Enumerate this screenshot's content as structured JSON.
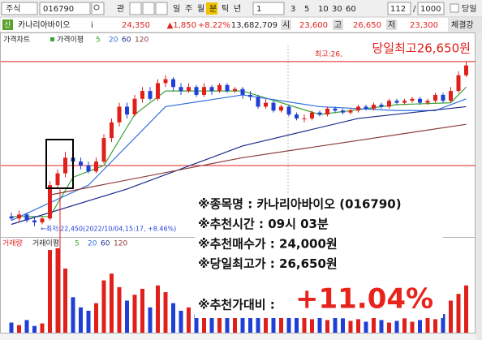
{
  "toolbar": {
    "market": "주식",
    "code": "016790",
    "search_label": "관",
    "periods": [
      "일",
      "주",
      "월",
      "분",
      "틱",
      "년"
    ],
    "active_period": "분",
    "interval": "1",
    "intervals": [
      "3",
      "5",
      "10",
      "30",
      "60"
    ],
    "count": "112",
    "separator": "/",
    "max_count": "1000",
    "today_label": "당일"
  },
  "info": {
    "badge": "신",
    "name": "카나리아바이오",
    "info_icon": "i",
    "price": "24,350",
    "change": "▲1,850",
    "change_pct": "+8.22%",
    "volume": "13,682,709",
    "open_label": "시",
    "open": "23,600",
    "high_label": "고",
    "high": "26,650",
    "low_label": "저",
    "low": "23,300",
    "strength_label": "체결강"
  },
  "chart_data": {
    "type": "candlestick",
    "tabs": [
      "가격차트",
      "가격이평"
    ],
    "ylim": [
      22200,
      27060
    ],
    "hlines": [
      26650,
      24000
    ],
    "up_color": "#e0201b",
    "down_color": "#1f3fd6",
    "high_marker": "최고:26,",
    "high_note": "당일최고26,650원",
    "low_note": "←최저:22,450(2022/10/04,15:17, +8.46%)",
    "open": [
      22700,
      22650,
      22750,
      22600,
      22550,
      22650,
      23500,
      23800,
      24200,
      24100,
      24000,
      23850,
      24100,
      24700,
      25100,
      25500,
      25300,
      25700,
      25900,
      25700,
      26100,
      26200,
      26000,
      25900,
      26000,
      25800,
      26000,
      25900,
      26050,
      25900,
      25950,
      25800,
      25750,
      25500,
      25600,
      25400,
      25500,
      25300,
      25200,
      25200,
      25350,
      25300,
      25450,
      25400,
      25350,
      25400,
      25500,
      25450,
      25550,
      25500,
      25650,
      25600,
      25650,
      25700,
      25600,
      25650,
      25800,
      25650,
      25900,
      26300
    ],
    "close": [
      22650,
      22750,
      22600,
      22550,
      22650,
      23500,
      23800,
      24200,
      24100,
      24000,
      23850,
      24100,
      24700,
      25100,
      25500,
      25300,
      25700,
      25900,
      25700,
      26100,
      26200,
      26000,
      25900,
      26000,
      25800,
      26000,
      25900,
      26050,
      25900,
      25950,
      25800,
      25750,
      25500,
      25600,
      25400,
      25500,
      25300,
      25200,
      25200,
      25350,
      25300,
      25450,
      25400,
      25350,
      25400,
      25500,
      25450,
      25550,
      25500,
      25650,
      25600,
      25650,
      25700,
      25600,
      25650,
      25800,
      25650,
      25900,
      26300,
      26550
    ],
    "high": [
      22800,
      22850,
      22800,
      22700,
      22700,
      23600,
      23900,
      24350,
      24300,
      24200,
      24100,
      24200,
      24800,
      25200,
      25600,
      25600,
      25800,
      26000,
      26000,
      26200,
      26300,
      26250,
      26100,
      26100,
      26050,
      26100,
      26050,
      26100,
      26100,
      26000,
      26000,
      25900,
      25800,
      25700,
      25650,
      25550,
      25550,
      25350,
      25300,
      25400,
      25400,
      25500,
      25500,
      25450,
      25450,
      25550,
      25550,
      25600,
      25600,
      25700,
      25700,
      25700,
      25750,
      25750,
      25700,
      25850,
      25850,
      26000,
      26400,
      26650
    ],
    "low": [
      22600,
      22550,
      22550,
      22450,
      22500,
      22600,
      23400,
      23700,
      24000,
      23900,
      23800,
      23800,
      24050,
      24600,
      25000,
      25200,
      25250,
      25600,
      25650,
      25650,
      26000,
      25900,
      25800,
      25850,
      25750,
      25750,
      25800,
      25850,
      25850,
      25850,
      25700,
      25650,
      25450,
      25450,
      25350,
      25350,
      25250,
      25150,
      25100,
      25150,
      25250,
      25250,
      25350,
      25300,
      25300,
      25350,
      25400,
      25400,
      25450,
      25450,
      25550,
      25550,
      25600,
      25550,
      25550,
      25600,
      25600,
      25600,
      25850,
      26250
    ],
    "moving_averages": [
      {
        "name": "5",
        "color": "#3aa335",
        "x": [
          0,
          5,
          8,
          12,
          16,
          20,
          30,
          40,
          50,
          57,
          59
        ],
        "values": [
          22700,
          22700,
          23700,
          24000,
          25300,
          25900,
          25900,
          25300,
          25550,
          25600,
          26000
        ]
      },
      {
        "name": "20",
        "color": "#2f6fe0",
        "x": [
          0,
          10,
          20,
          30,
          40,
          50,
          55,
          59
        ],
        "values": [
          22600,
          23500,
          25500,
          25800,
          25500,
          25400,
          25400,
          25700
        ]
      },
      {
        "name": "60",
        "color": "#1a2a8a",
        "x": [
          0,
          15,
          30,
          45,
          59
        ],
        "values": [
          22500,
          23400,
          24500,
          25200,
          25500
        ]
      },
      {
        "name": "120",
        "color": "#8b3a3a",
        "x": [
          5,
          30,
          59
        ],
        "values": [
          23250,
          24200,
          25050
        ]
      }
    ]
  },
  "volume": {
    "tabs": [
      "거래량",
      "거래이평"
    ],
    "ma_labels": [
      "5",
      "20",
      "60",
      "120"
    ],
    "ylim": [
      0,
      1000
    ],
    "values": [
      120,
      90,
      150,
      80,
      110,
      980,
      1000,
      760,
      420,
      300,
      260,
      350,
      620,
      700,
      540,
      380,
      450,
      520,
      300,
      560,
      480,
      350,
      260,
      300,
      220,
      280,
      240,
      200,
      260,
      180,
      240,
      200,
      320,
      260,
      220,
      180,
      260,
      300,
      200,
      160,
      180,
      150,
      200,
      170,
      140,
      160,
      130,
      180,
      150,
      120,
      140,
      170,
      130,
      150,
      200,
      160,
      220,
      380,
      460,
      560
    ]
  },
  "overlay": {
    "lines": [
      "※종목명 : 카나리아바이오 (016790)",
      "※추천시간 : 09시 03분",
      "※추천매수가 : 24,000원",
      "※당일최고가 : 26,650원",
      "※추천가대비 :"
    ],
    "gain": "+11.04%"
  }
}
